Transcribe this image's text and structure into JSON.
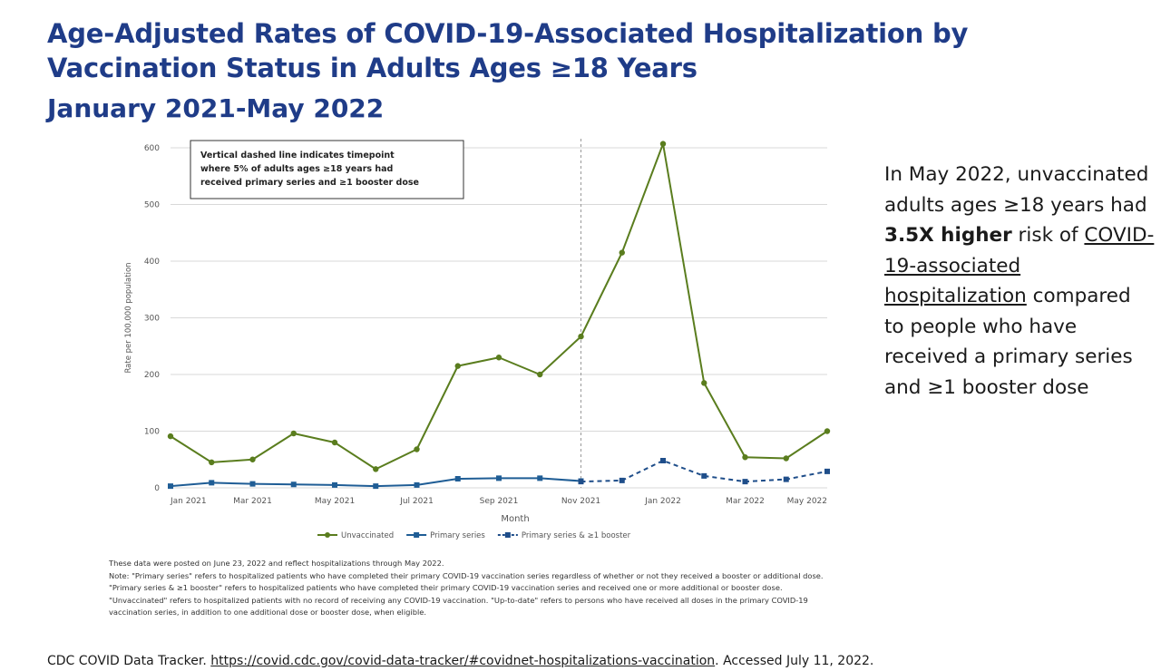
{
  "title": "Age-Adjusted Rates of COVID-19-Associated Hospitalization by Vaccination Status in Adults Ages ≥18 Years",
  "subtitle": "January 2021-May 2022",
  "colors": {
    "title": "#1f3c88",
    "unvaccinated": "#5a7d1e",
    "primary": "#1f5d95",
    "booster": "#1f4e8a",
    "grid": "#d9d9d9"
  },
  "chart_data": {
    "type": "line",
    "xlabel": "Month",
    "ylabel": "Rate per 100,000 population",
    "ylim": [
      0,
      600
    ],
    "yticks": [
      "0",
      "100",
      "200",
      "300",
      "400",
      "500",
      "600"
    ],
    "x": [
      "Jan 2021",
      "Feb 2021",
      "Mar 2021",
      "Apr 2021",
      "May 2021",
      "Jun 2021",
      "Jul 2021",
      "Aug 2021",
      "Sep 2021",
      "Oct 2021",
      "Nov 2021",
      "Dec 2021",
      "Jan 2022",
      "Feb 2022",
      "Mar 2022",
      "Apr 2022",
      "May 2022"
    ],
    "xtick_labels": [
      "Jan 2021",
      "Mar 2021",
      "May 2021",
      "Jul 2021",
      "Sep 2021",
      "Nov 2021",
      "Jan 2022",
      "Mar 2022",
      "May 2022"
    ],
    "series": [
      {
        "name": "Unvaccinated",
        "style": "solid-circle",
        "values": [
          91,
          45,
          50,
          96,
          80,
          33,
          68,
          215,
          230,
          200,
          267,
          415,
          607,
          185,
          54,
          52,
          100
        ]
      },
      {
        "name": "Primary series",
        "style": "solid-square",
        "values": [
          3,
          9,
          7,
          6,
          5,
          3,
          5,
          16,
          17,
          17,
          12,
          null,
          null,
          null,
          null,
          null,
          null
        ]
      },
      {
        "name": "Primary series & ≥1 booster",
        "style": "dashed-square",
        "values": [
          null,
          null,
          null,
          null,
          null,
          null,
          null,
          null,
          null,
          null,
          11,
          13,
          48,
          21,
          11,
          15,
          29
        ]
      }
    ],
    "legend_position": "bottom",
    "annotation": {
      "line1": "Vertical dashed line indicates timepoint",
      "line2": "where 5% of adults ages ≥18 years had",
      "line3": "received primary series and ≥1 booster dose",
      "x_category": "Nov 2021"
    }
  },
  "side_text": {
    "part1": "In May 2022, unvaccinated adults ages ≥18 years had ",
    "bold": "3.5X higher",
    "part2": " risk of ",
    "underlined": "COVID-19-associated hospitalization",
    "part3": " compared to people who have received a primary series and ≥1 booster dose"
  },
  "notes": {
    "line1": "These data were posted on June 23, 2022 and reflect hospitalizations through May 2022.",
    "line2": "Note: \"Primary series\" refers to hospitalized patients who have completed their primary COVID-19 vaccination series regardless of whether or not they received a booster or additional dose. \"Primary series & ≥1 booster\" refers to hospitalized patients who have completed their primary COVID-19 vaccination series and received one or more additional or booster dose. \"Unvaccinated\" refers to hospitalized patients with no record of receiving any COVID-19 vaccination. \"Up-to-date\" refers to persons who have received all doses in the primary COVID-19 vaccination series, in addition to one additional dose or booster dose, when eligible."
  },
  "source": {
    "prefix": "CDC COVID Data Tracker. ",
    "link": "https://covid.cdc.gov/covid-data-tracker/#covidnet-hospitalizations-vaccination",
    "suffix": ". Accessed July 11, 2022."
  }
}
